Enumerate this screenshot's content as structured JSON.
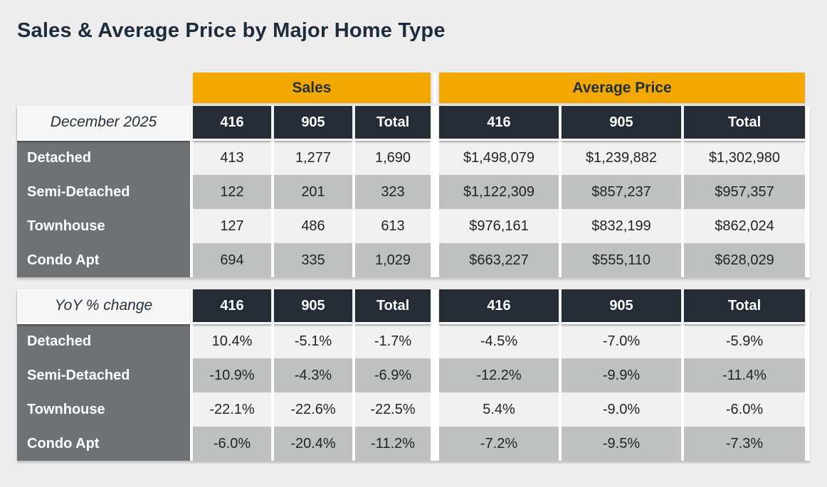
{
  "chart_data": {
    "type": "table",
    "title": "Sales & Average Price by Major Home Type",
    "column_groups": {
      "sales": "Sales",
      "avg_price": "Average Price"
    },
    "columns": [
      "416",
      "905",
      "Total"
    ],
    "sections": [
      {
        "label": "December 2025",
        "rows": [
          {
            "label": "Detached",
            "cells": [
              "413",
              "1,277",
              "1,690",
              "$1,498,079",
              "$1,239,882",
              "$1,302,980"
            ]
          },
          {
            "label": "Semi-Detached",
            "cells": [
              "122",
              "201",
              "323",
              "$1,122,309",
              "$857,237",
              "$957,357"
            ]
          },
          {
            "label": "Townhouse",
            "cells": [
              "127",
              "486",
              "613",
              "$976,161",
              "$832,199",
              "$862,024"
            ]
          },
          {
            "label": "Condo Apt",
            "cells": [
              "694",
              "335",
              "1,029",
              "$663,227",
              "$555,110",
              "$628,029"
            ]
          }
        ]
      },
      {
        "label": "YoY % change",
        "rows": [
          {
            "label": "Detached",
            "cells": [
              "10.4%",
              "-5.1%",
              "-1.7%",
              "-4.5%",
              "-7.0%",
              "-5.9%"
            ]
          },
          {
            "label": "Semi-Detached",
            "cells": [
              "-10.9%",
              "-4.3%",
              "-6.9%",
              "-12.2%",
              "-9.9%",
              "-11.4%"
            ]
          },
          {
            "label": "Townhouse",
            "cells": [
              "-22.1%",
              "-22.6%",
              "-22.5%",
              "5.4%",
              "-9.0%",
              "-6.0%"
            ]
          },
          {
            "label": "Condo Apt",
            "cells": [
              "-6.0%",
              "-20.4%",
              "-11.2%",
              "-7.2%",
              "-9.5%",
              "-7.3%"
            ]
          }
        ]
      }
    ],
    "layout_hints": {
      "striping": "rows alternate light/gray starting light",
      "legend_position": "none",
      "grid": "off"
    }
  },
  "colors": {
    "accent_orange": "#F2A800",
    "header_dark_navy": "#262C36",
    "row_label_gray": "#6F7275",
    "stripe_light": "#F1F1F1",
    "stripe_gray": "#BFC0C0",
    "page_background": "#EDEDED",
    "title_navy": "#1E2B3A"
  }
}
